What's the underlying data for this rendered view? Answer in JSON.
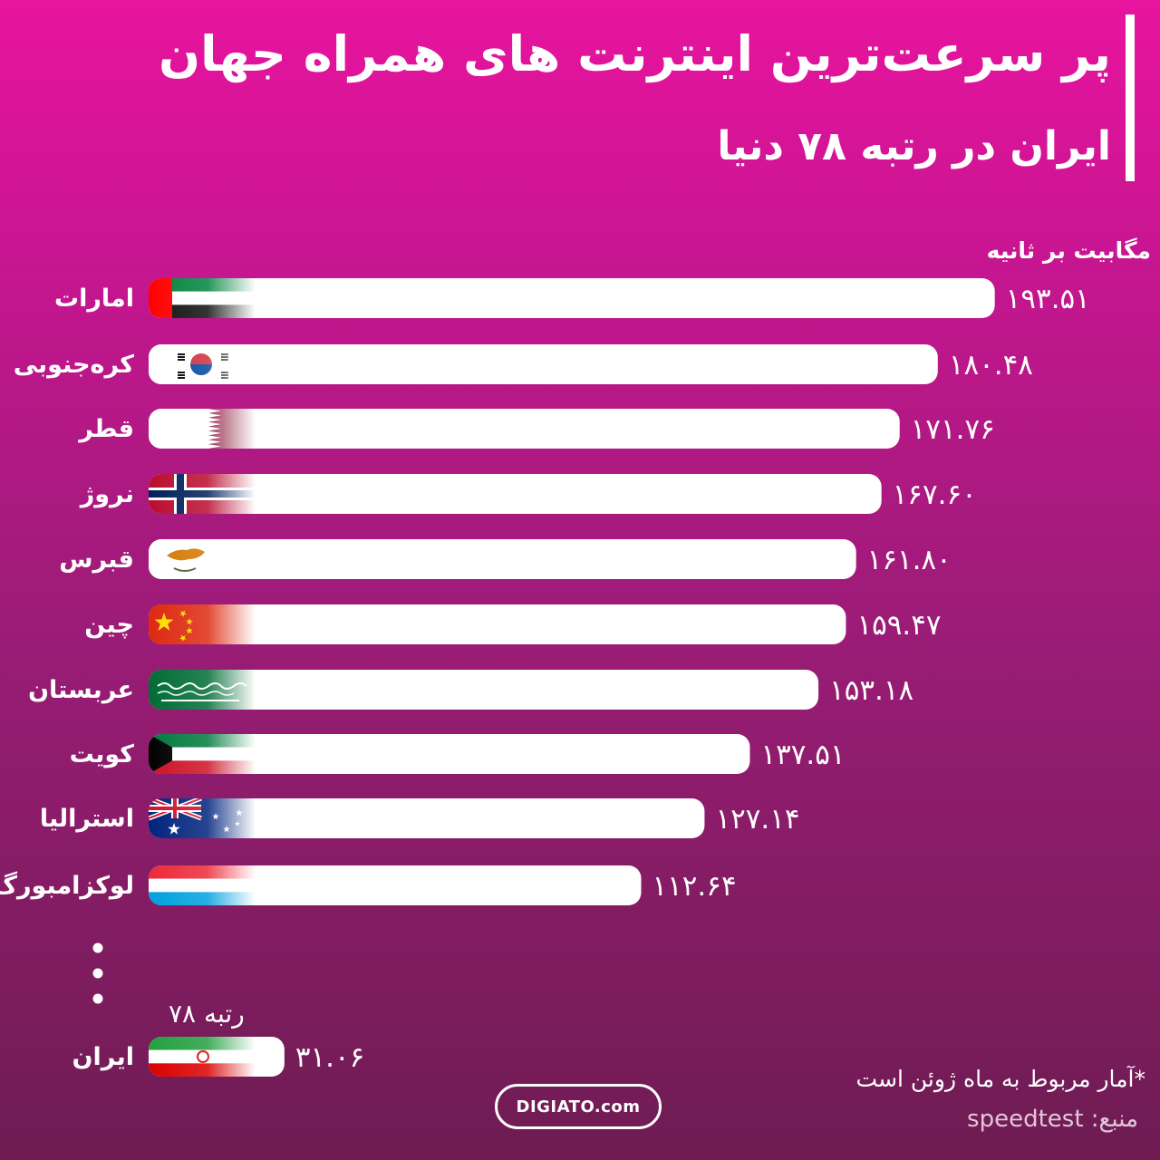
{
  "header": {
    "title": "پر سرعت‌ترین اینترنت های همراه جهان",
    "subtitle": "ایران در رتبه ۷۸ دنیا"
  },
  "unit_label": "مگابیت بر ثانیه",
  "iran_rank_label": "رتبه ۷۸",
  "footnote": "*آمار مربوط به ماه ژوئن است",
  "source_label": "منبع:",
  "source_name": "speedtest",
  "logo_text": "DIGIATO.com",
  "colors": {
    "bar": "#ffffff",
    "background_top": "#e8149e",
    "background_bottom": "#6e1c52"
  },
  "chart_data": {
    "type": "bar",
    "orientation": "horizontal",
    "categories": [
      "امارات",
      "کره‌جنوبی",
      "قطر",
      "نروژ",
      "قبرس",
      "چین",
      "عربستان",
      "کویت",
      "استرالیا",
      "لوکزامبورگ",
      "ایران"
    ],
    "values": [
      193.51,
      180.48,
      171.76,
      167.6,
      161.8,
      159.47,
      153.18,
      137.51,
      127.14,
      112.64,
      31.06
    ],
    "value_labels": [
      "۱۹۳.۵۱",
      "۱۸۰.۴۸",
      "۱۷۱.۷۶",
      "۱۶۷.۶۰",
      "۱۶۱.۸۰",
      "۱۵۹.۴۷",
      "۱۵۳.۱۸",
      "۱۳۷.۵۱",
      "۱۲۷.۱۴",
      "۱۱۲.۶۴",
      "۳۱.۰۶"
    ],
    "flags": [
      "uae-flag",
      "south-korea-flag",
      "qatar-flag",
      "norway-flag",
      "cyprus-flag",
      "china-flag",
      "saudi-arabia-flag",
      "kuwait-flag",
      "australia-flag",
      "luxembourg-flag",
      "iran-flag"
    ],
    "ellipsis_before_last": true,
    "ylabel": "مگابیت بر ثانیه",
    "grid": false,
    "legend": "none"
  }
}
